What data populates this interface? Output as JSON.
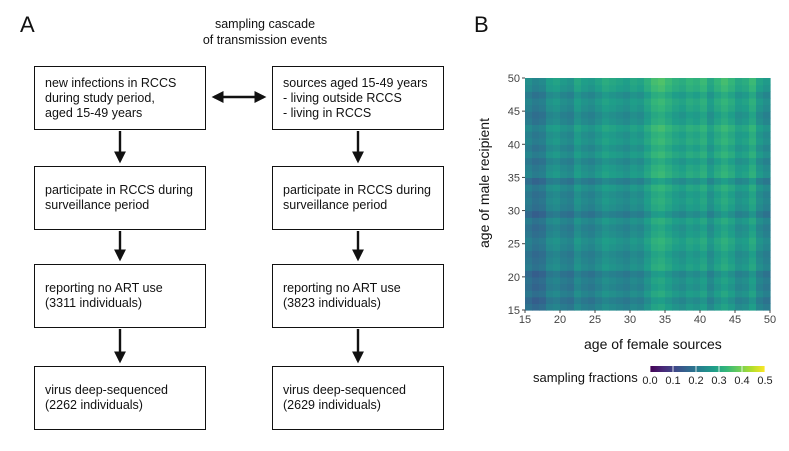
{
  "panel_a": {
    "letter": "A",
    "title_lines": [
      "sampling cascade",
      "of transmission events"
    ],
    "left_column": [
      [
        "new infections in RCCS",
        "during study period,",
        "aged 15-49 years"
      ],
      [
        "participate in RCCS during",
        "surveillance period"
      ],
      [
        "reporting no ART use",
        " (3311 individuals)"
      ],
      [
        "virus deep-sequenced",
        "(2262 individuals)"
      ]
    ],
    "right_column": [
      [
        "sources aged 15-49 years",
        "- living outside RCCS",
        "- living in RCCS"
      ],
      [
        "participate in RCCS during",
        "surveillance period"
      ],
      [
        "reporting no ART use",
        "(3823 individuals)"
      ],
      [
        "virus deep-sequenced",
        "(2629 individuals)"
      ]
    ]
  },
  "panel_b": {
    "letter": "B",
    "xlabel": "age of female sources",
    "ylabel": "age of male recipient",
    "legend_title": "sampling fractions",
    "legend_ticks": [
      "0.0",
      "0.1",
      "0.2",
      "0.3",
      "0.4",
      "0.5"
    ],
    "x_ticks": [
      "15",
      "20",
      "25",
      "30",
      "35",
      "40",
      "45",
      "50"
    ],
    "y_ticks": [
      "15",
      "20",
      "25",
      "30",
      "35",
      "40",
      "45",
      "50"
    ]
  },
  "chart_data": {
    "type": "heatmap",
    "xlabel": "age of female sources",
    "ylabel": "age of male recipient",
    "xlim": [
      15,
      50
    ],
    "ylim": [
      15,
      50
    ],
    "legend_title": "sampling fractions",
    "colorscale": "viridis",
    "color_range": [
      0.0,
      0.5
    ],
    "female_source_age_fractions": [
      0.22,
      0.2,
      0.21,
      0.25,
      0.26,
      0.24,
      0.23,
      0.27,
      0.25,
      0.24,
      0.26,
      0.28,
      0.27,
      0.26,
      0.25,
      0.27,
      0.26,
      0.29,
      0.32,
      0.33,
      0.31,
      0.29,
      0.28,
      0.3,
      0.29,
      0.31,
      0.27,
      0.3,
      0.32,
      0.3,
      0.27,
      0.28,
      0.31,
      0.26,
      0.24
    ],
    "male_recipient_age_fractions": [
      0.24,
      0.22,
      0.25,
      0.23,
      0.24,
      0.22,
      0.26,
      0.25,
      0.24,
      0.26,
      0.27,
      0.25,
      0.24,
      0.26,
      0.22,
      0.25,
      0.26,
      0.25,
      0.27,
      0.23,
      0.28,
      0.27,
      0.25,
      0.28,
      0.26,
      0.28,
      0.27,
      0.29,
      0.26,
      0.25,
      0.27,
      0.28,
      0.26,
      0.29,
      0.3
    ]
  }
}
